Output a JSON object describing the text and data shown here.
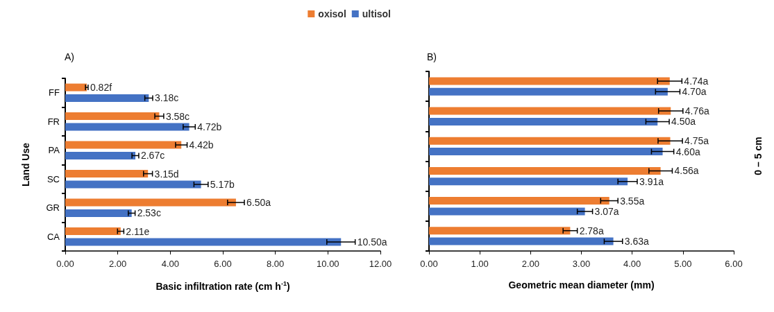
{
  "chart_data": [
    {
      "type": "bar",
      "orientation": "horizontal",
      "title": "A)",
      "ylabel": "Land Use",
      "xlabel": "Basic infiltration rate (cm h$^{-1}$)",
      "categories": [
        "FF",
        "FR",
        "PA",
        "SC",
        "GR",
        "CA"
      ],
      "series": [
        {
          "name": "oxisol",
          "color": "#ed7d31",
          "values": [
            0.82,
            3.58,
            4.42,
            3.15,
            6.5,
            2.11
          ],
          "errors": [
            0.05,
            0.17,
            0.22,
            0.17,
            0.32,
            0.12
          ],
          "value_labels": [
            "0.82f",
            "3.58c",
            "4.42b",
            "3.15d",
            "6.50a",
            "2.11e"
          ]
        },
        {
          "name": "ultisol",
          "color": "#4472c4",
          "values": [
            3.18,
            4.72,
            2.67,
            5.17,
            2.53,
            10.5
          ],
          "errors": [
            0.15,
            0.23,
            0.13,
            0.27,
            0.13,
            0.54
          ],
          "value_labels": [
            "3.18c",
            "4.72b",
            "2.67c",
            "5.17b",
            "2.53c",
            "10.50a"
          ]
        }
      ],
      "xlim": [
        0,
        12
      ],
      "xticks": [
        {
          "value": 0,
          "label": "0.00"
        },
        {
          "value": 2,
          "label": "2.00"
        },
        {
          "value": 4,
          "label": "4.00"
        },
        {
          "value": 6,
          "label": "6.00"
        },
        {
          "value": 8,
          "label": "8.00"
        },
        {
          "value": 10,
          "label": "10.00"
        },
        {
          "value": 12,
          "label": "12.00"
        }
      ],
      "grid": false,
      "legend": "top"
    },
    {
      "type": "bar",
      "orientation": "horizontal",
      "title": "B)",
      "xlabel": "Geometric mean diameter (mm)",
      "categories": [
        null,
        null,
        null,
        null,
        null,
        null
      ],
      "tick_labels": "x",
      "series": [
        {
          "color": "#ed7d31",
          "values": [
            4.74,
            4.76,
            4.75,
            4.56,
            3.55,
            2.78
          ],
          "errors": [
            0.24,
            0.24,
            0.24,
            0.23,
            0.17,
            0.14
          ],
          "value_labels": [
            "4.74a",
            "4.76a",
            "4.75a",
            "4.56a",
            "3.55a",
            "2.78a"
          ]
        },
        {
          "color": "#4472c4",
          "values": [
            4.7,
            4.5,
            4.6,
            3.91,
            3.07,
            3.63
          ],
          "errors": [
            0.24,
            0.23,
            0.22,
            0.19,
            0.15,
            0.18
          ],
          "value_labels": [
            "4.70a",
            "4.50a",
            "4.60a",
            "3.91a",
            "3.07a",
            "3.63a"
          ]
        }
      ],
      "xlim": [
        0,
        6
      ],
      "xticks": [
        {
          "value": 0,
          "label": "0.00"
        },
        {
          "value": 1,
          "label": "1.00"
        },
        {
          "value": 2,
          "label": "2.00"
        },
        {
          "value": 3,
          "label": "3.00"
        },
        {
          "value": 4,
          "label": "4.00"
        },
        {
          "value": 5,
          "label": "5.00"
        },
        {
          "value": 6,
          "label": "6.00"
        }
      ],
      "grid": false,
      "legend": false,
      "annotations": [
        "0 – 5 cm"
      ]
    }
  ]
}
